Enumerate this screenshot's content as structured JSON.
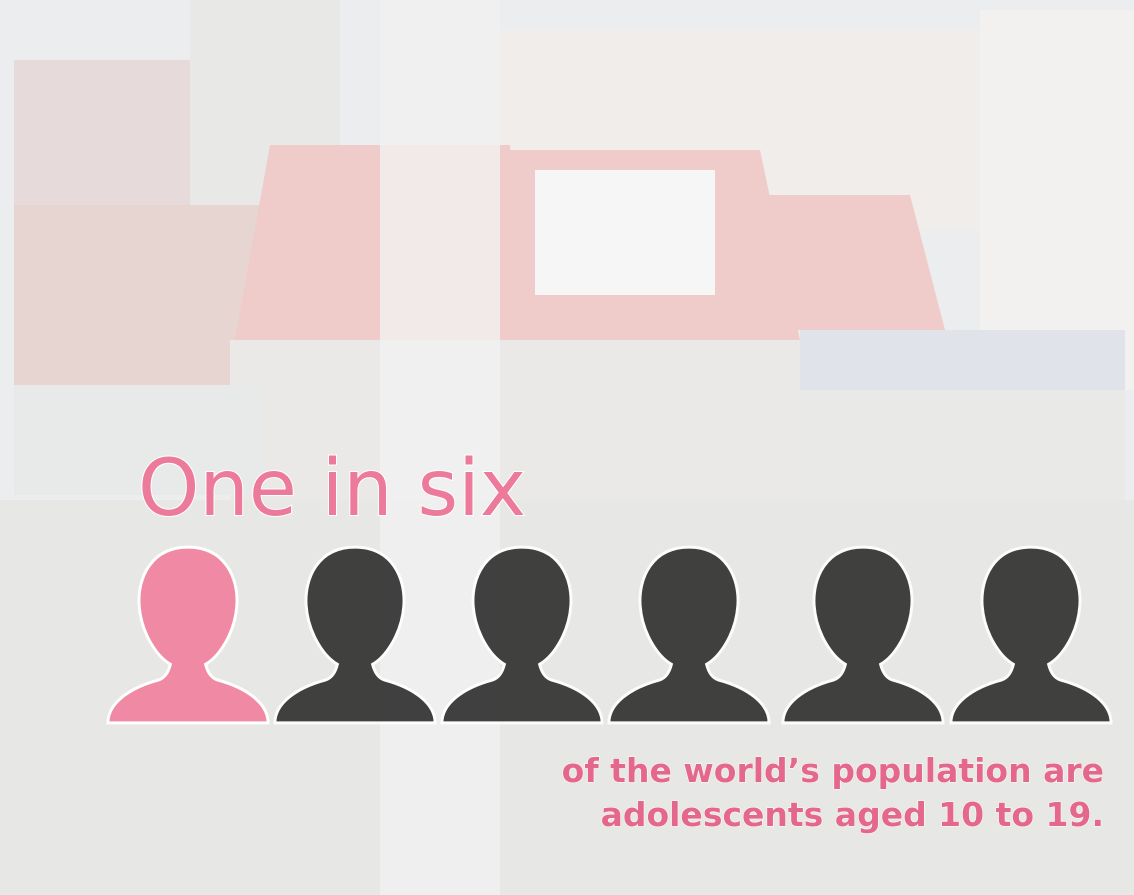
{
  "headline": "One in six",
  "caption": {
    "line1": "of the world’s population are",
    "line2": "adolescents aged 10 to 19."
  }
}
